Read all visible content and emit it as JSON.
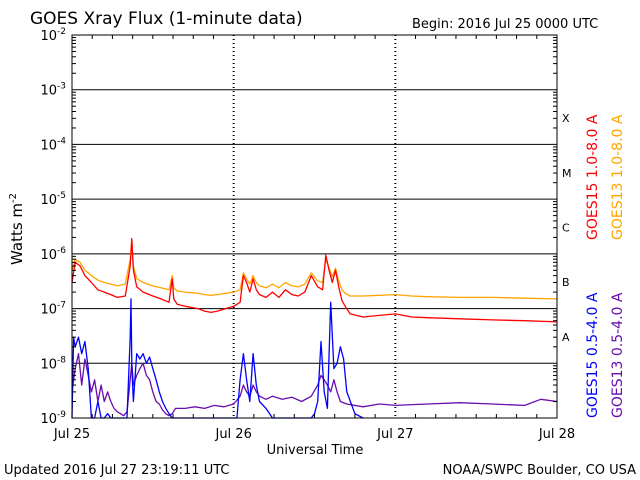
{
  "chart_data": {
    "type": "line",
    "title": "GOES Xray Flux (1-minute data)",
    "begin_label": "Begin:  2016 Jul 25 0000 UTC",
    "xlabel": "Universal Time",
    "ylabel": "Watts m",
    "ylabel_superscript": "-2",
    "yscale": "log",
    "ylim": [
      1e-09,
      0.01
    ],
    "x_range_days": [
      0,
      3
    ],
    "x_ticks": [
      {
        "day": 0,
        "label": "Jul 25"
      },
      {
        "day": 1,
        "label": "Jul 26"
      },
      {
        "day": 2,
        "label": "Jul 27"
      },
      {
        "day": 3,
        "label": "Jul 28"
      }
    ],
    "y_ticks": [
      {
        "exp": -9,
        "label": "10"
      },
      {
        "exp": -8,
        "label": "10"
      },
      {
        "exp": -7,
        "label": "10"
      },
      {
        "exp": -6,
        "label": "10"
      },
      {
        "exp": -5,
        "label": "10"
      },
      {
        "exp": -4,
        "label": "10"
      },
      {
        "exp": -3,
        "label": "10"
      },
      {
        "exp": -2,
        "label": "10"
      }
    ],
    "flare_classes": [
      {
        "label": "A",
        "exp": -8
      },
      {
        "label": "B",
        "exp": -7
      },
      {
        "label": "C",
        "exp": -6
      },
      {
        "label": "M",
        "exp": -5
      },
      {
        "label": "X",
        "exp": -4
      }
    ],
    "grid": true,
    "series": [
      {
        "name": "GOES15 1.0-8.0 A",
        "color": "#ff0000",
        "x": [
          0,
          0.02,
          0.05,
          0.08,
          0.12,
          0.16,
          0.2,
          0.24,
          0.28,
          0.33,
          0.36,
          0.37,
          0.38,
          0.4,
          0.44,
          0.5,
          0.55,
          0.6,
          0.62,
          0.63,
          0.65,
          0.7,
          0.78,
          0.82,
          0.86,
          0.9,
          0.95,
          1.0,
          1.04,
          1.06,
          1.08,
          1.1,
          1.12,
          1.14,
          1.16,
          1.2,
          1.24,
          1.28,
          1.32,
          1.36,
          1.4,
          1.44,
          1.48,
          1.52,
          1.55,
          1.57,
          1.59,
          1.61,
          1.63,
          1.65,
          1.67,
          1.69,
          1.72,
          1.76,
          1.8,
          1.9,
          2.0,
          2.1,
          2.2,
          2.4,
          2.6,
          2.8,
          3.0
        ],
        "y": [
          3e-07,
          7e-07,
          6e-07,
          4e-07,
          3e-07,
          2.2e-07,
          2e-07,
          1.8e-07,
          1.6e-07,
          1.7e-07,
          6e-07,
          1.9e-06,
          5e-07,
          2.5e-07,
          2e-07,
          1.7e-07,
          1.5e-07,
          1.3e-07,
          3.5e-07,
          1.5e-07,
          1.2e-07,
          1.1e-07,
          1e-07,
          9e-08,
          8.5e-08,
          9e-08,
          1e-07,
          1.1e-07,
          1.3e-07,
          4e-07,
          3e-07,
          2e-07,
          3.5e-07,
          2.2e-07,
          1.8e-07,
          1.6e-07,
          2e-07,
          1.6e-07,
          2.2e-07,
          1.8e-07,
          1.7e-07,
          2e-07,
          4e-07,
          2.5e-07,
          2.2e-07,
          9.5e-07,
          5e-07,
          3e-07,
          5e-07,
          2.5e-07,
          1.4e-07,
          1.1e-07,
          8e-08,
          7.5e-08,
          7e-08,
          7.5e-08,
          8e-08,
          7e-08,
          6.8e-08,
          6.5e-08,
          6.2e-08,
          6e-08,
          5.7e-08
        ]
      },
      {
        "name": "GOES13 1.0-8.0 A",
        "color": "#ffa500",
        "x": [
          0,
          0.02,
          0.05,
          0.08,
          0.12,
          0.16,
          0.2,
          0.24,
          0.28,
          0.33,
          0.36,
          0.37,
          0.38,
          0.4,
          0.44,
          0.5,
          0.55,
          0.6,
          0.62,
          0.63,
          0.65,
          0.7,
          0.78,
          0.82,
          0.86,
          0.9,
          0.95,
          1.0,
          1.04,
          1.06,
          1.08,
          1.1,
          1.12,
          1.14,
          1.16,
          1.2,
          1.24,
          1.28,
          1.32,
          1.36,
          1.4,
          1.44,
          1.48,
          1.52,
          1.55,
          1.57,
          1.59,
          1.61,
          1.63,
          1.65,
          1.67,
          1.69,
          1.72,
          1.76,
          1.8,
          1.9,
          2.0,
          2.1,
          2.2,
          2.4,
          2.6,
          2.8,
          3.0
        ],
        "y": [
          5e-07,
          8e-07,
          7e-07,
          5e-07,
          4e-07,
          3.3e-07,
          3e-07,
          2.8e-07,
          2.6e-07,
          2.8e-07,
          8e-07,
          1.7e-06,
          6e-07,
          3.5e-07,
          3e-07,
          2.6e-07,
          2.4e-07,
          2.2e-07,
          4e-07,
          2.4e-07,
          2.1e-07,
          2e-07,
          1.9e-07,
          1.8e-07,
          1.75e-07,
          1.8e-07,
          1.9e-07,
          2e-07,
          2.2e-07,
          4.5e-07,
          3.5e-07,
          2.8e-07,
          4e-07,
          3e-07,
          2.6e-07,
          2.4e-07,
          2.8e-07,
          2.4e-07,
          3e-07,
          2.6e-07,
          2.5e-07,
          2.8e-07,
          4.5e-07,
          3.2e-07,
          3e-07,
          8e-07,
          5.5e-07,
          3.8e-07,
          5.5e-07,
          3.2e-07,
          2.2e-07,
          1.9e-07,
          1.7e-07,
          1.7e-07,
          1.7e-07,
          1.75e-07,
          1.8e-07,
          1.7e-07,
          1.65e-07,
          1.6e-07,
          1.6e-07,
          1.55e-07,
          1.5e-07
        ]
      },
      {
        "name": "GOES15 0.5-4.0 A",
        "color": "#0000ff",
        "x": [
          0,
          0.01,
          0.02,
          0.04,
          0.06,
          0.08,
          0.1,
          0.12,
          0.14,
          0.16,
          0.18,
          0.2,
          0.22,
          0.24,
          0.26,
          0.28,
          0.3,
          0.32,
          0.34,
          0.36,
          0.365,
          0.37,
          0.375,
          0.38,
          0.4,
          0.42,
          0.44,
          0.46,
          0.48,
          0.5,
          0.52,
          0.54,
          0.56,
          0.58,
          0.6,
          0.62,
          0.64,
          0.7,
          0.76,
          0.82,
          0.86,
          0.9,
          0.94,
          0.98,
          1.02,
          1.04,
          1.06,
          1.08,
          1.1,
          1.12,
          1.14,
          1.16,
          1.2,
          1.24,
          1.28,
          1.3,
          1.32,
          1.36,
          1.4,
          1.44,
          1.48,
          1.5,
          1.52,
          1.54,
          1.56,
          1.58,
          1.6,
          1.62,
          1.64,
          1.66,
          1.68,
          1.7,
          1.75,
          1.8
        ],
        "y": [
          1e-09,
          3e-08,
          2e-08,
          3e-08,
          1.5e-08,
          2.5e-08,
          8e-09,
          1e-09,
          1e-09,
          2e-09,
          1e-09,
          1e-09,
          1.2e-09,
          1e-09,
          1e-09,
          1e-09,
          1e-09,
          1e-09,
          1e-09,
          3e-08,
          1.5e-07,
          1e-08,
          4e-09,
          2e-09,
          1.5e-08,
          1.2e-08,
          1.5e-08,
          1e-08,
          1.3e-08,
          8e-09,
          5e-09,
          3e-09,
          2e-09,
          1.5e-09,
          1.2e-09,
          1e-09,
          1e-09,
          1e-09,
          1e-09,
          1e-09,
          1e-09,
          1e-09,
          1e-09,
          1e-09,
          1e-09,
          5e-09,
          1.5e-08,
          5e-09,
          2e-09,
          1.5e-08,
          4e-09,
          2e-09,
          1.5e-09,
          1e-09,
          1e-09,
          1e-09,
          1e-09,
          1e-09,
          1e-09,
          1e-09,
          1e-09,
          1.2e-09,
          2e-09,
          2.5e-08,
          3e-09,
          1.5e-09,
          1.3e-07,
          8e-09,
          1e-08,
          2e-08,
          1.2e-08,
          3e-09,
          1.2e-09,
          1e-09
        ]
      },
      {
        "name": "GOES13 0.5-4.0 A",
        "color": "#6a0dad",
        "x": [
          0,
          0.02,
          0.04,
          0.06,
          0.08,
          0.1,
          0.12,
          0.14,
          0.16,
          0.18,
          0.2,
          0.22,
          0.24,
          0.26,
          0.28,
          0.3,
          0.32,
          0.34,
          0.36,
          0.37,
          0.38,
          0.4,
          0.42,
          0.44,
          0.46,
          0.48,
          0.5,
          0.52,
          0.54,
          0.56,
          0.58,
          0.6,
          0.62,
          0.64,
          0.7,
          0.76,
          0.82,
          0.88,
          0.94,
          1.0,
          1.04,
          1.06,
          1.08,
          1.1,
          1.12,
          1.14,
          1.16,
          1.2,
          1.24,
          1.3,
          1.36,
          1.42,
          1.48,
          1.52,
          1.54,
          1.56,
          1.58,
          1.6,
          1.62,
          1.64,
          1.66,
          1.7,
          1.8,
          1.9,
          2.0,
          2.2,
          2.4,
          2.6,
          2.8,
          2.9,
          3.0
        ],
        "y": [
          3e-09,
          8e-09,
          1.5e-08,
          4e-09,
          1.2e-08,
          6e-09,
          3e-09,
          5e-09,
          2e-09,
          4e-09,
          2e-09,
          3e-09,
          2e-09,
          1.5e-09,
          1.3e-09,
          1.2e-09,
          1.1e-09,
          1.3e-09,
          5e-09,
          1e-08,
          4e-09,
          6e-09,
          8e-09,
          1e-08,
          6e-09,
          5e-09,
          3e-09,
          2e-09,
          1.8e-09,
          1.4e-09,
          1.2e-09,
          1.1e-09,
          1.2e-09,
          1.5e-09,
          1.5e-09,
          1.6e-09,
          1.5e-09,
          1.7e-09,
          1.6e-09,
          1.8e-09,
          2.5e-09,
          4e-09,
          3e-09,
          2.5e-09,
          4e-09,
          3e-09,
          2.5e-09,
          2.2e-09,
          2.5e-09,
          2.2e-09,
          2.4e-09,
          2e-09,
          2.5e-09,
          4e-09,
          6e-09,
          5e-09,
          4e-09,
          3e-09,
          5e-09,
          3e-09,
          2e-09,
          1.8e-09,
          1.6e-09,
          1.8e-09,
          1.7e-09,
          1.8e-09,
          1.9e-09,
          1.8e-09,
          1.7e-09,
          2.2e-09,
          2e-09
        ]
      }
    ]
  },
  "footer": {
    "updated": "Updated 2016 Jul 27 23:19:11 UTC",
    "credit": "NOAA/SWPC Boulder, CO USA"
  }
}
